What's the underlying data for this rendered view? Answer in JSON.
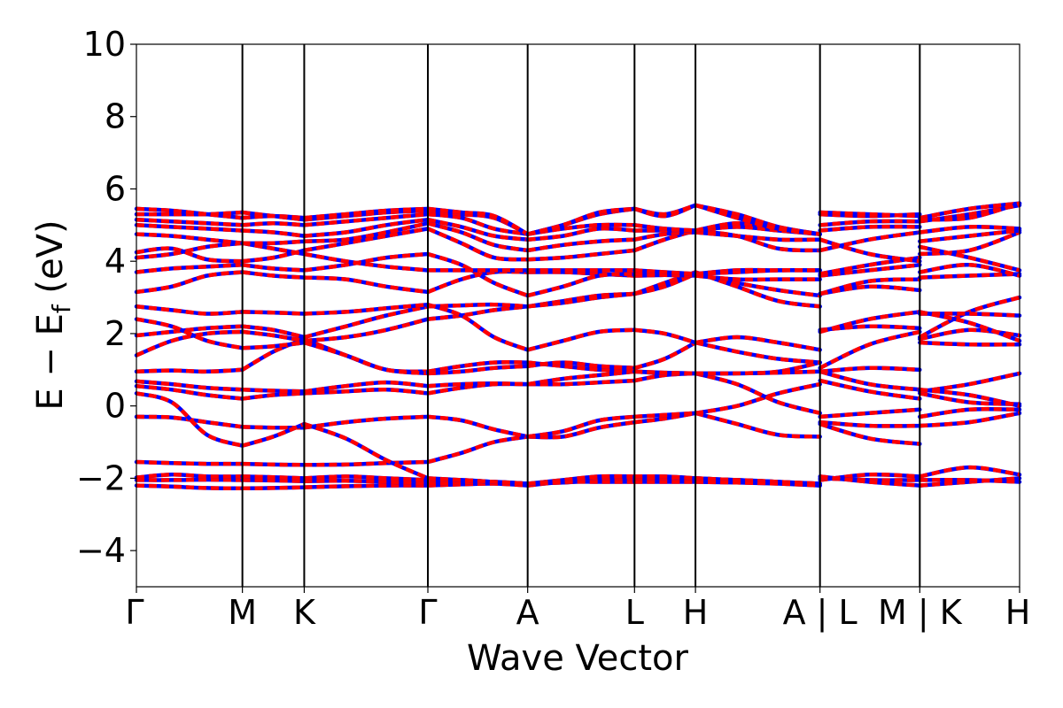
{
  "chart_data": {
    "type": "line",
    "title": "",
    "xlabel": "Wave Vector",
    "ylabel_main": "E − E",
    "ylabel_sub": "f",
    "ylabel_unit": " (eV)",
    "ylim": [
      -5,
      10
    ],
    "yticks": [
      -4,
      -2,
      0,
      2,
      4,
      6,
      8,
      10
    ],
    "ytick_labels": [
      "−4",
      "−2",
      "0",
      "2",
      "4",
      "6",
      "8",
      "10"
    ],
    "xlim": [
      0,
      10.0
    ],
    "xticks": [
      0,
      1.2,
      1.9,
      3.3,
      4.43,
      5.64,
      6.33,
      7.74,
      8.87,
      10.0
    ],
    "xtick_labels": [
      "Γ",
      "M",
      "K",
      "Γ",
      "A",
      "L",
      "H",
      "A | L",
      "M | K",
      "H"
    ],
    "grid": false,
    "series_colors": {
      "spin_up": "#ff0000",
      "spin_down": "#0000ff"
    },
    "segments": [
      {
        "from": "Γ",
        "to": "M",
        "x": [
          0.0,
          0.4,
          0.8,
          1.2
        ],
        "bands": [
          [
            -2.2,
            -2.23,
            -2.27,
            -2.28
          ],
          [
            -2.05,
            -2.05,
            -2.04,
            -2.05
          ],
          [
            -1.98,
            -1.9,
            -1.95,
            -1.95
          ],
          [
            -1.55,
            -1.58,
            -1.6,
            -1.6
          ],
          [
            -0.3,
            -0.32,
            -0.45,
            -0.58
          ],
          [
            0.35,
            0.1,
            -0.8,
            -1.1
          ],
          [
            0.55,
            0.45,
            0.3,
            0.2
          ],
          [
            0.68,
            0.6,
            0.5,
            0.45
          ],
          [
            0.95,
            0.98,
            0.95,
            1.0
          ],
          [
            1.4,
            1.8,
            2.0,
            2.05
          ],
          [
            1.95,
            2.05,
            2.15,
            2.2
          ],
          [
            2.4,
            2.2,
            1.8,
            1.6
          ],
          [
            2.75,
            2.65,
            2.55,
            2.6
          ],
          [
            3.15,
            3.3,
            3.6,
            3.7
          ],
          [
            3.7,
            3.8,
            3.85,
            3.9
          ],
          [
            4.1,
            4.2,
            4.4,
            4.5
          ],
          [
            4.25,
            4.35,
            4.05,
            4.0
          ],
          [
            4.75,
            4.7,
            4.6,
            4.5
          ],
          [
            5.0,
            4.95,
            4.9,
            4.85
          ],
          [
            5.15,
            5.1,
            5.05,
            5.0
          ],
          [
            5.3,
            5.3,
            5.3,
            5.35
          ],
          [
            5.45,
            5.4,
            5.3,
            5.2
          ]
        ]
      },
      {
        "from": "M",
        "to": "K",
        "x": [
          1.2,
          1.55,
          1.9
        ],
        "bands": [
          [
            -2.28,
            -2.27,
            -2.25
          ],
          [
            -2.05,
            -2.06,
            -2.08
          ],
          [
            -1.95,
            -1.97,
            -2.0
          ],
          [
            -1.6,
            -1.62,
            -1.63
          ],
          [
            -0.58,
            -0.6,
            -0.6
          ],
          [
            -1.1,
            -0.85,
            -0.5
          ],
          [
            0.2,
            0.3,
            0.35
          ],
          [
            0.45,
            0.42,
            0.4
          ],
          [
            1.0,
            1.5,
            1.85
          ],
          [
            2.05,
            1.95,
            1.8
          ],
          [
            2.2,
            2.1,
            1.9
          ],
          [
            1.6,
            1.65,
            1.75
          ],
          [
            2.6,
            2.58,
            2.55
          ],
          [
            3.7,
            3.6,
            3.55
          ],
          [
            3.9,
            3.8,
            3.75
          ],
          [
            4.5,
            4.35,
            4.2
          ],
          [
            4.0,
            4.1,
            4.3
          ],
          [
            4.5,
            4.5,
            4.55
          ],
          [
            4.85,
            4.8,
            4.7
          ],
          [
            5.0,
            5.05,
            5.0
          ],
          [
            5.35,
            5.25,
            5.15
          ],
          [
            5.2,
            5.25,
            5.2
          ]
        ]
      },
      {
        "from": "K",
        "to": "Γ",
        "x": [
          1.9,
          2.37,
          2.83,
          3.3
        ],
        "bands": [
          [
            -2.25,
            -2.22,
            -2.2,
            -2.2
          ],
          [
            -2.08,
            -2.07,
            -2.1,
            -2.15
          ],
          [
            -2.0,
            -1.95,
            -2.0,
            -2.05
          ],
          [
            -1.63,
            -1.62,
            -1.58,
            -1.55
          ],
          [
            -0.6,
            -0.45,
            -0.35,
            -0.3
          ],
          [
            -0.5,
            -0.9,
            -1.5,
            -2.0
          ],
          [
            0.35,
            0.4,
            0.45,
            0.35
          ],
          [
            0.4,
            0.55,
            0.65,
            0.55
          ],
          [
            1.85,
            1.4,
            1.0,
            0.95
          ],
          [
            1.8,
            1.9,
            2.1,
            2.4
          ],
          [
            1.9,
            2.2,
            2.5,
            2.75
          ],
          [
            1.75,
            1.4,
            1.0,
            0.9
          ],
          [
            2.55,
            2.6,
            2.7,
            2.8
          ],
          [
            3.55,
            3.5,
            3.3,
            3.15
          ],
          [
            3.75,
            3.9,
            4.1,
            4.2
          ],
          [
            4.2,
            4.0,
            3.85,
            3.75
          ],
          [
            4.3,
            4.5,
            4.7,
            4.9
          ],
          [
            4.55,
            4.6,
            4.8,
            5.05
          ],
          [
            4.7,
            4.8,
            5.0,
            5.15
          ],
          [
            5.0,
            5.1,
            5.2,
            5.3
          ],
          [
            5.15,
            5.25,
            5.35,
            5.4
          ],
          [
            5.2,
            5.3,
            5.4,
            5.45
          ]
        ]
      },
      {
        "from": "Γ",
        "to": "A",
        "x": [
          3.3,
          3.68,
          4.05,
          4.43
        ],
        "bands": [
          [
            -2.2,
            -2.17,
            -2.15,
            -2.2
          ],
          [
            -2.15,
            -2.12,
            -2.1,
            -2.15
          ],
          [
            -2.05,
            -2.05,
            -2.1,
            -2.15
          ],
          [
            -1.55,
            -1.3,
            -1.0,
            -0.85
          ],
          [
            -0.3,
            -0.4,
            -0.65,
            -0.85
          ],
          [
            -2.0,
            -2.05,
            -2.1,
            -2.15
          ],
          [
            0.35,
            0.5,
            0.6,
            0.6
          ],
          [
            0.55,
            0.6,
            0.62,
            0.6
          ],
          [
            0.95,
            1.1,
            1.2,
            1.2
          ],
          [
            2.4,
            2.5,
            2.65,
            2.75
          ],
          [
            2.75,
            2.78,
            2.8,
            2.75
          ],
          [
            0.9,
            0.95,
            1.05,
            1.1
          ],
          [
            2.8,
            2.5,
            1.9,
            1.55
          ],
          [
            3.15,
            3.5,
            3.7,
            3.7
          ],
          [
            4.2,
            3.9,
            3.4,
            3.05
          ],
          [
            3.75,
            3.75,
            3.75,
            3.75
          ],
          [
            4.9,
            4.5,
            4.1,
            4.05
          ],
          [
            5.05,
            4.8,
            4.45,
            4.3
          ],
          [
            5.15,
            4.95,
            4.7,
            4.6
          ],
          [
            5.3,
            5.2,
            4.9,
            4.75
          ],
          [
            5.4,
            5.3,
            5.2,
            4.75
          ],
          [
            5.45,
            5.35,
            5.25,
            4.75
          ]
        ]
      },
      {
        "from": "A",
        "to": "L",
        "x": [
          4.43,
          4.83,
          5.24,
          5.64
        ],
        "bands": [
          [
            -2.2,
            -2.1,
            -2.05,
            -2.05
          ],
          [
            -2.15,
            -2.12,
            -2.05,
            -2.0
          ],
          [
            -2.15,
            -2.05,
            -1.95,
            -1.95
          ],
          [
            -0.85,
            -0.85,
            -0.6,
            -0.45
          ],
          [
            -0.85,
            -0.7,
            -0.4,
            -0.3
          ],
          [
            -2.15,
            -2.1,
            -2.1,
            -2.1
          ],
          [
            0.6,
            0.6,
            0.65,
            0.7
          ],
          [
            0.6,
            0.75,
            0.85,
            0.95
          ],
          [
            1.2,
            1.1,
            1.0,
            0.95
          ],
          [
            2.75,
            2.9,
            3.05,
            3.1
          ],
          [
            2.75,
            2.85,
            3.0,
            3.1
          ],
          [
            1.1,
            1.2,
            1.1,
            1.05
          ],
          [
            1.55,
            1.8,
            2.05,
            2.1
          ],
          [
            3.7,
            3.7,
            3.65,
            3.6
          ],
          [
            3.05,
            3.3,
            3.6,
            3.65
          ],
          [
            3.75,
            3.75,
            3.75,
            3.75
          ],
          [
            4.05,
            4.1,
            4.2,
            4.3
          ],
          [
            4.3,
            4.45,
            4.55,
            4.6
          ],
          [
            4.6,
            4.7,
            4.9,
            4.85
          ],
          [
            4.75,
            4.9,
            5.0,
            5.0
          ],
          [
            4.75,
            5.0,
            5.3,
            5.45
          ],
          [
            4.75,
            5.0,
            5.35,
            5.45
          ]
        ]
      },
      {
        "from": "L",
        "to": "H",
        "x": [
          5.64,
          5.98,
          6.33
        ],
        "bands": [
          [
            -2.05,
            -2.05,
            -2.05
          ],
          [
            -2.0,
            -2.02,
            -2.0
          ],
          [
            -1.95,
            -1.95,
            -2.0
          ],
          [
            -0.45,
            -0.35,
            -0.2
          ],
          [
            -0.3,
            -0.25,
            -0.2
          ],
          [
            -2.1,
            -2.1,
            -2.1
          ],
          [
            0.7,
            0.85,
            0.9
          ],
          [
            0.95,
            0.9,
            0.9
          ],
          [
            0.95,
            0.92,
            0.9
          ],
          [
            3.1,
            3.3,
            3.65
          ],
          [
            3.1,
            3.4,
            3.7
          ],
          [
            1.05,
            1.3,
            1.75
          ],
          [
            2.1,
            2.0,
            1.75
          ],
          [
            3.6,
            3.62,
            3.65
          ],
          [
            3.65,
            3.62,
            3.6
          ],
          [
            3.75,
            3.7,
            3.65
          ],
          [
            4.3,
            4.6,
            4.85
          ],
          [
            4.6,
            4.75,
            4.8
          ],
          [
            4.85,
            4.85,
            4.85
          ],
          [
            5.0,
            4.9,
            4.85
          ],
          [
            5.45,
            5.25,
            5.55
          ],
          [
            5.45,
            5.3,
            5.55
          ]
        ]
      },
      {
        "from": "H",
        "to": "A",
        "x": [
          6.33,
          6.8,
          7.27,
          7.74
        ],
        "bands": [
          [
            -2.05,
            -2.05,
            -2.1,
            -2.2
          ],
          [
            -2.0,
            -2.05,
            -2.1,
            -2.15
          ],
          [
            -2.0,
            -2.05,
            -2.1,
            -2.15
          ],
          [
            -0.2,
            -0.5,
            -0.8,
            -0.85
          ],
          [
            -0.2,
            0.0,
            0.35,
            0.6
          ],
          [
            -2.1,
            -2.12,
            -2.15,
            -2.2
          ],
          [
            0.9,
            0.6,
            0.1,
            -0.2
          ],
          [
            0.9,
            0.9,
            0.95,
            1.2
          ],
          [
            0.9,
            0.9,
            0.92,
            0.95
          ],
          [
            3.65,
            3.4,
            3.2,
            3.05
          ],
          [
            3.7,
            3.3,
            2.9,
            2.75
          ],
          [
            1.75,
            1.5,
            1.3,
            1.2
          ],
          [
            1.75,
            1.9,
            1.75,
            1.55
          ],
          [
            3.65,
            3.75,
            3.75,
            3.75
          ],
          [
            3.6,
            3.5,
            3.5,
            3.5
          ],
          [
            3.65,
            3.7,
            3.75,
            3.75
          ],
          [
            4.85,
            4.7,
            4.35,
            4.3
          ],
          [
            4.8,
            4.7,
            4.6,
            4.6
          ],
          [
            4.85,
            4.95,
            4.85,
            4.75
          ],
          [
            4.85,
            5.05,
            4.9,
            4.75
          ],
          [
            5.55,
            5.3,
            4.95,
            4.75
          ],
          [
            5.55,
            5.2,
            4.9,
            4.75
          ]
        ]
      },
      {
        "from": "L",
        "to": "M",
        "x": [
          7.74,
          8.3,
          8.87
        ],
        "bands": [
          [
            -2.05,
            -1.9,
            -1.95
          ],
          [
            -2.0,
            -2.05,
            -2.05
          ],
          [
            -1.95,
            -2.1,
            -2.2
          ],
          [
            -0.45,
            -0.55,
            -0.55
          ],
          [
            -0.3,
            -0.2,
            -0.1
          ],
          [
            -0.5,
            -0.9,
            -1.05
          ],
          [
            0.7,
            0.4,
            0.2
          ],
          [
            0.95,
            0.6,
            0.45
          ],
          [
            0.95,
            1.05,
            1.0
          ],
          [
            3.1,
            3.3,
            3.2
          ],
          [
            3.1,
            3.45,
            3.5
          ],
          [
            1.05,
            1.7,
            2.05
          ],
          [
            2.1,
            2.2,
            2.15
          ],
          [
            3.6,
            3.75,
            3.9
          ],
          [
            3.65,
            3.9,
            4.1
          ],
          [
            2.05,
            2.4,
            2.6
          ],
          [
            4.3,
            4.6,
            4.8
          ],
          [
            4.6,
            4.2,
            4.0
          ],
          [
            4.85,
            4.95,
            4.95
          ],
          [
            5.0,
            5.1,
            5.1
          ],
          [
            5.3,
            5.25,
            5.3
          ],
          [
            5.35,
            5.3,
            5.25
          ]
        ]
      },
      {
        "from": "K",
        "to": "H",
        "x": [
          8.87,
          9.43,
          10.0
        ],
        "bands": [
          [
            -2.2,
            -2.1,
            -2.0
          ],
          [
            -2.05,
            -2.05,
            -2.1
          ],
          [
            -1.95,
            -1.7,
            -1.9
          ],
          [
            -0.55,
            -0.45,
            -0.2
          ],
          [
            0.35,
            0.1,
            0.05
          ],
          [
            -0.3,
            -0.1,
            -0.1
          ],
          [
            0.4,
            0.6,
            0.9
          ],
          [
            0.45,
            0.3,
            0.0
          ],
          [
            1.75,
            1.7,
            1.7
          ],
          [
            1.85,
            2.1,
            1.95
          ],
          [
            1.9,
            2.6,
            3.0
          ],
          [
            2.55,
            2.55,
            2.5
          ],
          [
            2.6,
            2.3,
            1.8
          ],
          [
            3.55,
            3.6,
            3.65
          ],
          [
            3.7,
            3.9,
            3.6
          ],
          [
            4.2,
            4.3,
            4.8
          ],
          [
            4.4,
            4.1,
            3.75
          ],
          [
            4.55,
            4.7,
            4.85
          ],
          [
            4.8,
            4.95,
            4.9
          ],
          [
            5.1,
            5.3,
            5.55
          ],
          [
            5.2,
            5.45,
            5.6
          ],
          [
            5.15,
            5.2,
            5.6
          ]
        ]
      }
    ]
  }
}
